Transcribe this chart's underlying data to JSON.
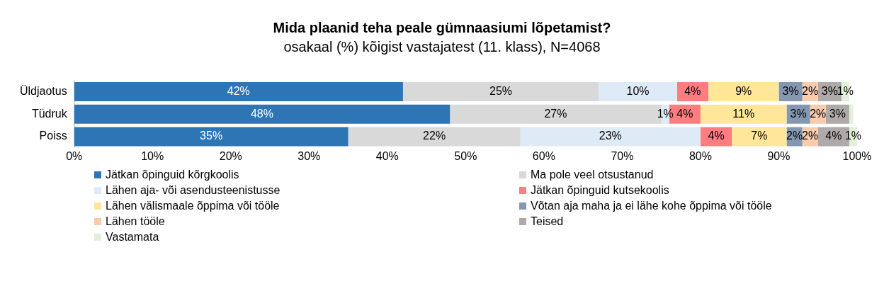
{
  "chart_data": {
    "type": "bar",
    "orientation": "horizontal",
    "stacked": true,
    "title": "Mida plaanid teha peale gümnaasiumi lõpetamist?",
    "subtitle": "osakaal (%) kõigist vastajatest (11. klass), N=4068",
    "categories": [
      "Üldjaotus",
      "Tüdruk",
      "Poiss"
    ],
    "xlim": [
      0,
      100
    ],
    "xticks": [
      {
        "value": 0,
        "label": "0%"
      },
      {
        "value": 10,
        "label": "10%"
      },
      {
        "value": 20,
        "label": "20%"
      },
      {
        "value": 30,
        "label": "30%"
      },
      {
        "value": 40,
        "label": "40%"
      },
      {
        "value": 50,
        "label": "50%"
      },
      {
        "value": 60,
        "label": "60%"
      },
      {
        "value": 70,
        "label": "70%"
      },
      {
        "value": 80,
        "label": "80%"
      },
      {
        "value": 90,
        "label": "90%"
      },
      {
        "value": 100,
        "label": "100%"
      }
    ],
    "grid": false,
    "legend": "bottom",
    "series": [
      {
        "name": "Jätkan õpinguid kõrgkoolis",
        "color": "#2e75b6",
        "values": [
          42,
          48,
          35
        ],
        "value_labels": [
          "42%",
          "48%",
          "35%"
        ]
      },
      {
        "name": "Ma pole veel otsustanud",
        "color": "#d9d9d9",
        "values": [
          25,
          27,
          22
        ],
        "value_labels": [
          "25%",
          "27%",
          "22%"
        ]
      },
      {
        "name": "Lähen aja- või asendusteenistusse",
        "color": "#deebf7",
        "values": [
          10,
          1,
          23
        ],
        "value_labels": [
          "10%",
          "1%",
          "23%"
        ]
      },
      {
        "name": "Jätkan õpinguid kutsekoolis",
        "color": "#ff7c80",
        "values": [
          4,
          4,
          4
        ],
        "value_labels": [
          "4%",
          "4%",
          "4%"
        ]
      },
      {
        "name": "Lähen välismaale õppima või tööle",
        "color": "#ffe699",
        "values": [
          9,
          11,
          7
        ],
        "value_labels": [
          "9%",
          "11%",
          "7%"
        ]
      },
      {
        "name": "Võtan aja maha ja ei lähe kohe õppima või tööle",
        "color": "#8497b0",
        "values": [
          3,
          3,
          2
        ],
        "value_labels": [
          "3%",
          "3%",
          "2%"
        ]
      },
      {
        "name": "Lähen tööle",
        "color": "#f8cbad",
        "values": [
          2,
          2,
          2
        ],
        "value_labels": [
          "2%",
          "2%",
          "2%"
        ]
      },
      {
        "name": "Teised",
        "color": "#aeaaaa",
        "values": [
          3,
          3,
          4
        ],
        "value_labels": [
          "3%",
          "3%",
          "4%"
        ]
      },
      {
        "name": "Vastamata",
        "color": "#e2f0d9",
        "values": [
          1,
          0.5,
          1
        ],
        "value_labels": [
          "1%",
          null,
          "1%"
        ]
      }
    ]
  }
}
